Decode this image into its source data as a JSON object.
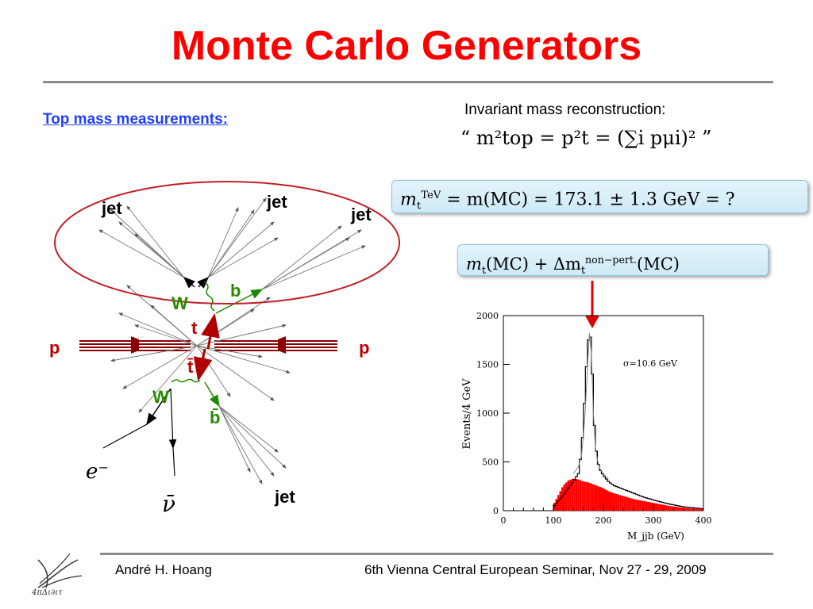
{
  "slide": {
    "title": "Monte Carlo Generators",
    "subtitle": "Top mass measurements:",
    "invariant_label": "Invariant mass reconstruction:",
    "invariant_formula": "“ m²top = p²t = (∑i pμi)² ”",
    "box1_left": "m",
    "box1_left_sub": "t",
    "box1_left_sup": "TeV",
    "box1_rest": " = m(MC) = 173.1 ± 1.3 GeV = ?",
    "box2_a": "m",
    "box2_a_sub": "t",
    "box2_b": "(MC)   +   Δm",
    "box2_b_sub": "t",
    "box2_b_sup": "non−pert.",
    "box2_c": "(MC)"
  },
  "diagram": {
    "labels": {
      "jet1": "jet",
      "jet2": "jet",
      "jet3": "jet",
      "jet4": "jet",
      "b": "b",
      "bbar": "b̄",
      "W_top": "W",
      "W_bottom": "W",
      "t": "t",
      "tbar": "t̄",
      "p_left": "p",
      "p_right": "p",
      "electron": "e⁻",
      "neutrino": "ν̄"
    },
    "colors": {
      "quark": "#1a8a00",
      "proton": "#8b0000",
      "top": "#b00000",
      "ellipse": "#c0202a",
      "label_green": "#2a8a00",
      "label_red": "#c00000"
    }
  },
  "chart_data": {
    "type": "histogram",
    "xlabel": "M_jjb (GeV)",
    "ylabel": "Events/4 GeV",
    "xlim": [
      0,
      400
    ],
    "ylim": [
      0,
      2000
    ],
    "xticks": [
      0,
      100,
      200,
      300,
      400
    ],
    "yticks": [
      0,
      500,
      1000,
      1500,
      2000
    ],
    "annotation": "σ=10.6 GeV",
    "bin_width": 4,
    "series": [
      {
        "name": "",
        "style": "black-step",
        "x": [
          100,
          110,
          120,
          130,
          140,
          150,
          156,
          160,
          164,
          168,
          170,
          172,
          174,
          176,
          178,
          180,
          184,
          188,
          192,
          200,
          210,
          220,
          240,
          260,
          280,
          300,
          330,
          360,
          400
        ],
        "values": [
          40,
          100,
          160,
          230,
          300,
          380,
          600,
          900,
          1300,
          1650,
          1750,
          1830,
          1780,
          1650,
          1400,
          1050,
          700,
          520,
          430,
          360,
          300,
          260,
          220,
          180,
          140,
          110,
          70,
          40,
          20
        ]
      },
      {
        "name": "",
        "style": "red-fill",
        "x": [
          100,
          110,
          120,
          130,
          140,
          150,
          160,
          170,
          180,
          190,
          200,
          210,
          220,
          240,
          260,
          280,
          300,
          330,
          360,
          400
        ],
        "values": [
          60,
          160,
          260,
          310,
          330,
          320,
          300,
          290,
          270,
          250,
          230,
          200,
          180,
          150,
          120,
          100,
          80,
          50,
          30,
          15
        ]
      },
      {
        "name": "",
        "style": "gray-fit",
        "x": [
          140,
          150,
          156,
          160,
          164,
          168,
          172,
          176,
          180,
          184,
          188,
          192,
          200,
          210
        ],
        "values": [
          380,
          450,
          560,
          760,
          1050,
          1450,
          1820,
          1620,
          1000,
          650,
          520,
          440,
          380,
          320
        ]
      }
    ],
    "arrow_at_x": 174
  },
  "footer": {
    "author": "André H. Hoang",
    "conference": "6th Vienna Central European Seminar, Nov 27 - 29, 2009",
    "logo_text": "4πΔι∂ιτ"
  }
}
